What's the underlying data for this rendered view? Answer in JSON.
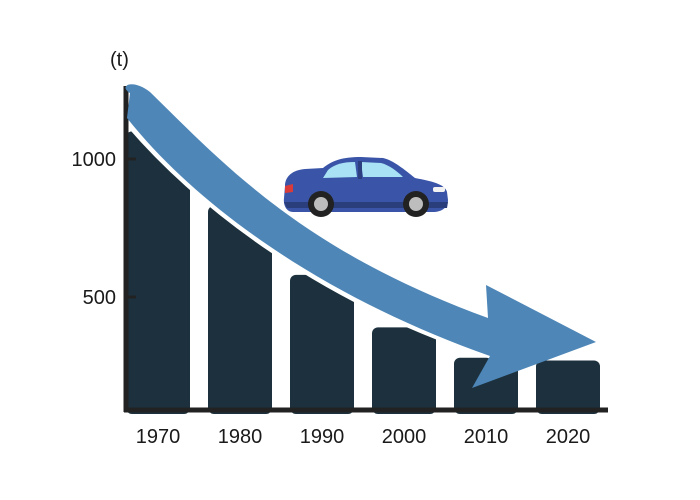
{
  "chart_data": {
    "type": "bar",
    "title": "",
    "xlabel": "",
    "ylabel": "(t)",
    "yticks": [
      "500",
      "1000"
    ],
    "categories": [
      "1970",
      "1980",
      "1990",
      "2000",
      "2010",
      "2020"
    ],
    "values": [
      1100,
      830,
      580,
      390,
      280,
      270
    ],
    "ylim": [
      100,
      1300
    ],
    "grid": false,
    "legend": "none",
    "trend": "decreasing",
    "illustration": "car-icon",
    "colors": {
      "bar": "#1c313d",
      "trend_arrow": "#4d86b7",
      "axis": "#222222",
      "car_body": "#3a55a8",
      "car_window": "#a9e2f4"
    }
  }
}
